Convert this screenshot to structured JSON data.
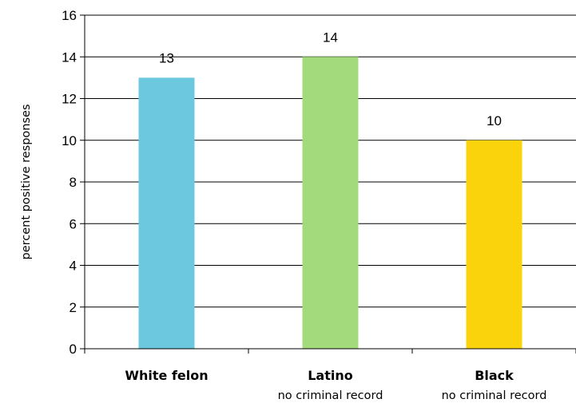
{
  "chart_data": {
    "type": "bar",
    "title": "",
    "xlabel": "",
    "ylabel": "percent positive responses",
    "ylim": [
      0,
      16
    ],
    "yticks": [
      0,
      2,
      4,
      6,
      8,
      10,
      12,
      14,
      16
    ],
    "grid": true,
    "legend": "none",
    "categories": [
      {
        "label": "White felon",
        "sublabel": "",
        "value": 13,
        "color": "#6CC8DF"
      },
      {
        "label": "Latino",
        "sublabel": "no criminal record",
        "value": 14,
        "color": "#A3DA7B"
      },
      {
        "label": "Black",
        "sublabel": "no criminal record",
        "value": 10,
        "color": "#FBD30D"
      }
    ]
  }
}
